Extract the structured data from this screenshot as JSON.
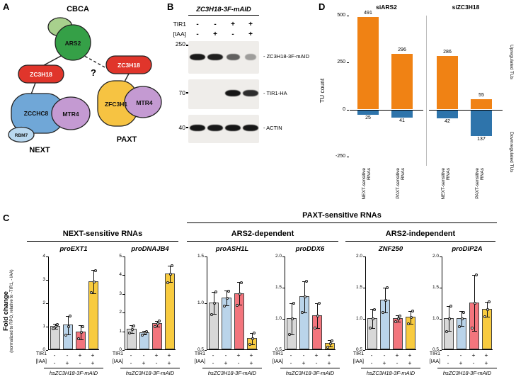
{
  "figure": {
    "panel_labels": {
      "a": "A",
      "b": "B",
      "c": "C",
      "d": "D"
    }
  },
  "panelA": {
    "labels": {
      "cbca": "CBCA",
      "ars2": "ARS2",
      "zc3h18_left": "ZC3H18",
      "zc3h18_right": "ZC3H18",
      "question": "?",
      "zcchc8": "ZCCHC8",
      "mtr4_next": "MTR4",
      "rbm7": "RBM7",
      "next": "NEXT",
      "zfc3h1": "ZFC3H1",
      "mtr4_paxt": "MTR4",
      "paxt": "PAXT"
    },
    "colors": {
      "cbc": "#a8d08d",
      "ars2": "#35a047",
      "zc3h18": "#e0352b",
      "zcchc8": "#70a7d7",
      "mtr4": "#c49ad2",
      "rbm7": "#b9d8f0",
      "zfc3h1": "#f6c342"
    }
  },
  "panelB": {
    "title": "ZC3H18-3F-mAID",
    "row_labels": {
      "tir1": "TIR1",
      "iaa": "[IAA]"
    },
    "tir1_signs": [
      "-",
      "-",
      "+",
      "+"
    ],
    "iaa_signs": [
      "-",
      "+",
      "-",
      "+"
    ],
    "blots": [
      {
        "marker": "250",
        "label": "- ZC3H18-3F-mAID",
        "band_intensities": [
          0.92,
          0.88,
          0.5,
          0.15
        ]
      },
      {
        "marker": "70",
        "label": "- TIR1-HA",
        "band_intensities": [
          0,
          0,
          0.95,
          0.8
        ]
      },
      {
        "marker": "40",
        "label": "- ACTIN",
        "band_intensities": [
          0.95,
          0.92,
          0.95,
          0.93
        ]
      }
    ]
  },
  "panelC": {
    "group_headers": {
      "paxt": "PAXT-sensitive RNAs",
      "next": "NEXT-sensitive RNAs",
      "ars2_dependent": "ARS2-dependent",
      "ars2_independent": "ARS2-independent"
    },
    "y_axis": {
      "title": "Fold change",
      "subtitle": "(normalized to RPO, relative to -TIR1, - IAA)"
    },
    "row_labels": {
      "tir1": "TIR1",
      "iaa": "[IAA]"
    },
    "tir1_signs": [
      "-",
      "-",
      "+",
      "+"
    ],
    "iaa_signs": [
      "-",
      "+",
      "-",
      "+"
    ],
    "cell_line_label": "hsZC3H18-3F-mAID",
    "bar_colors": [
      "#d8d8d8",
      "#bad4ea",
      "#f3757d",
      "#f8cb3f"
    ]
  },
  "chart_data": [
    {
      "panel": "D",
      "type": "bar",
      "title": "TU count",
      "ylabel": "TU count",
      "ylim": [
        -300,
        500
      ],
      "ytick_values": [
        500,
        250,
        0,
        -250
      ],
      "yticks": [
        "500",
        "250",
        "0",
        "-250"
      ],
      "colors": {
        "up": "#f08214",
        "down": "#2e74ab"
      },
      "legend_right": [
        "Upregulated TUs",
        "Downregulated TUs"
      ],
      "facets": [
        {
          "title": "siARS2",
          "categories": [
            "NEXT-sensitive RNAs",
            "PAXT-sensitive RNAs"
          ],
          "upregulated": [
            491,
            296
          ],
          "downregulated": [
            25,
            41
          ]
        },
        {
          "title": "siZC3H18",
          "categories": [
            "NEXT-sensitive RNAs",
            "PAXT-sensitive RNAs"
          ],
          "upregulated": [
            286,
            55
          ],
          "downregulated": [
            42,
            137
          ]
        }
      ]
    },
    {
      "panel": "C",
      "type": "bar",
      "title": "proEXT1",
      "group": "NEXT-sensitive RNAs",
      "conditions": [
        "TIR1- IAA-",
        "TIR1- IAA+",
        "TIR1+ IAA-",
        "TIR1+ IAA+"
      ],
      "values": [
        1.0,
        1.05,
        0.75,
        2.9
      ],
      "errors": [
        0.1,
        0.4,
        0.3,
        0.5
      ],
      "points": [
        [
          0.9,
          1.0,
          1.1
        ],
        [
          0.65,
          1.0,
          1.45
        ],
        [
          0.5,
          0.75,
          1.0
        ],
        [
          2.45,
          2.9,
          3.4
        ]
      ],
      "ylim": [
        0,
        4
      ],
      "ytick_values": [
        0,
        1,
        2,
        3,
        4
      ],
      "yticks": [
        "0",
        "1",
        "2",
        "3",
        "4"
      ]
    },
    {
      "panel": "C",
      "type": "bar",
      "title": "proDNAJB4",
      "group": "NEXT-sensitive RNAs",
      "conditions": [
        "TIR1- IAA-",
        "TIR1- IAA+",
        "TIR1+ IAA-",
        "TIR1+ IAA+"
      ],
      "values": [
        1.1,
        0.9,
        1.4,
        4.05
      ],
      "errors": [
        0.2,
        0.1,
        0.15,
        0.45
      ],
      "points": [
        [
          0.9,
          1.1,
          1.3
        ],
        [
          0.8,
          0.9,
          1.0
        ],
        [
          1.25,
          1.4,
          1.55
        ],
        [
          3.6,
          4.05,
          4.5
        ]
      ],
      "ylim": [
        0,
        5
      ],
      "ytick_values": [
        0,
        1,
        2,
        3,
        4,
        5
      ],
      "yticks": [
        "0",
        "1",
        "2",
        "3",
        "4",
        "5"
      ]
    },
    {
      "panel": "C",
      "type": "bar",
      "title": "proASH1L",
      "group": "PAXT-sensitive RNAs (ARS2-dependent)",
      "conditions": [
        "TIR1- IAA-",
        "TIR1- IAA+",
        "TIR1+ IAA-",
        "TIR1+ IAA+"
      ],
      "values": [
        1.0,
        1.05,
        1.1,
        0.62
      ],
      "errors": [
        0.12,
        0.08,
        0.12,
        0.06
      ],
      "points": [
        [
          0.88,
          1.0,
          1.12
        ],
        [
          0.97,
          1.05,
          1.13
        ],
        [
          0.98,
          1.1,
          1.22
        ],
        [
          0.56,
          0.62,
          0.68
        ]
      ],
      "ylim": [
        0.5,
        1.5
      ],
      "ytick_values": [
        0.5,
        1.0,
        1.5
      ],
      "yticks": [
        "0.5",
        "1.0",
        "1.5"
      ]
    },
    {
      "panel": "C",
      "type": "bar",
      "title": "proDDX6",
      "group": "PAXT-sensitive RNAs (ARS2-dependent)",
      "conditions": [
        "TIR1- IAA-",
        "TIR1- IAA+",
        "TIR1+ IAA-",
        "TIR1+ IAA+"
      ],
      "values": [
        1.0,
        1.35,
        1.05,
        0.6
      ],
      "errors": [
        0.25,
        0.25,
        0.2,
        0.05
      ],
      "points": [
        [
          0.75,
          1.0,
          1.25
        ],
        [
          1.1,
          1.35,
          1.6
        ],
        [
          0.85,
          1.05,
          1.25
        ],
        [
          0.55,
          0.6,
          0.65
        ]
      ],
      "ylim": [
        0.5,
        2.0
      ],
      "ytick_values": [
        0.5,
        1.0,
        1.5,
        2.0
      ],
      "yticks": [
        "0.5",
        "1.0",
        "1.5",
        "2.0"
      ]
    },
    {
      "panel": "C",
      "type": "bar",
      "title": "ZNF250",
      "group": "PAXT-sensitive RNAs (ARS2-independent)",
      "conditions": [
        "TIR1- IAA-",
        "TIR1- IAA+",
        "TIR1+ IAA-",
        "TIR1+ IAA+"
      ],
      "values": [
        1.0,
        1.3,
        1.0,
        1.02
      ],
      "errors": [
        0.15,
        0.2,
        0.05,
        0.1
      ],
      "points": [
        [
          0.85,
          1.0,
          1.15
        ],
        [
          1.1,
          1.3,
          1.5
        ],
        [
          0.95,
          1.0,
          1.05
        ],
        [
          0.92,
          1.02,
          1.12
        ]
      ],
      "ylim": [
        0.5,
        2.0
      ],
      "ytick_values": [
        0.5,
        1.0,
        1.5,
        2.0
      ],
      "yticks": [
        "0.5",
        "1.0",
        "1.5",
        "2.0"
      ]
    },
    {
      "panel": "C",
      "type": "bar",
      "title": "proDIP2A",
      "group": "PAXT-sensitive RNAs (ARS2-independent)",
      "conditions": [
        "TIR1- IAA-",
        "TIR1- IAA+",
        "TIR1+ IAA-",
        "TIR1+ IAA+"
      ],
      "values": [
        1.0,
        1.0,
        1.25,
        1.15
      ],
      "errors": [
        0.2,
        0.12,
        0.45,
        0.12
      ],
      "points": [
        [
          0.8,
          1.0,
          1.2
        ],
        [
          0.88,
          1.0,
          1.1
        ],
        [
          0.85,
          1.25,
          1.7
        ],
        [
          1.03,
          1.15,
          1.27
        ]
      ],
      "ylim": [
        0.5,
        2.0
      ],
      "ytick_values": [
        0.5,
        1.0,
        1.5,
        2.0
      ],
      "yticks": [
        "0.5",
        "1.0",
        "1.5",
        "2.0"
      ]
    }
  ]
}
